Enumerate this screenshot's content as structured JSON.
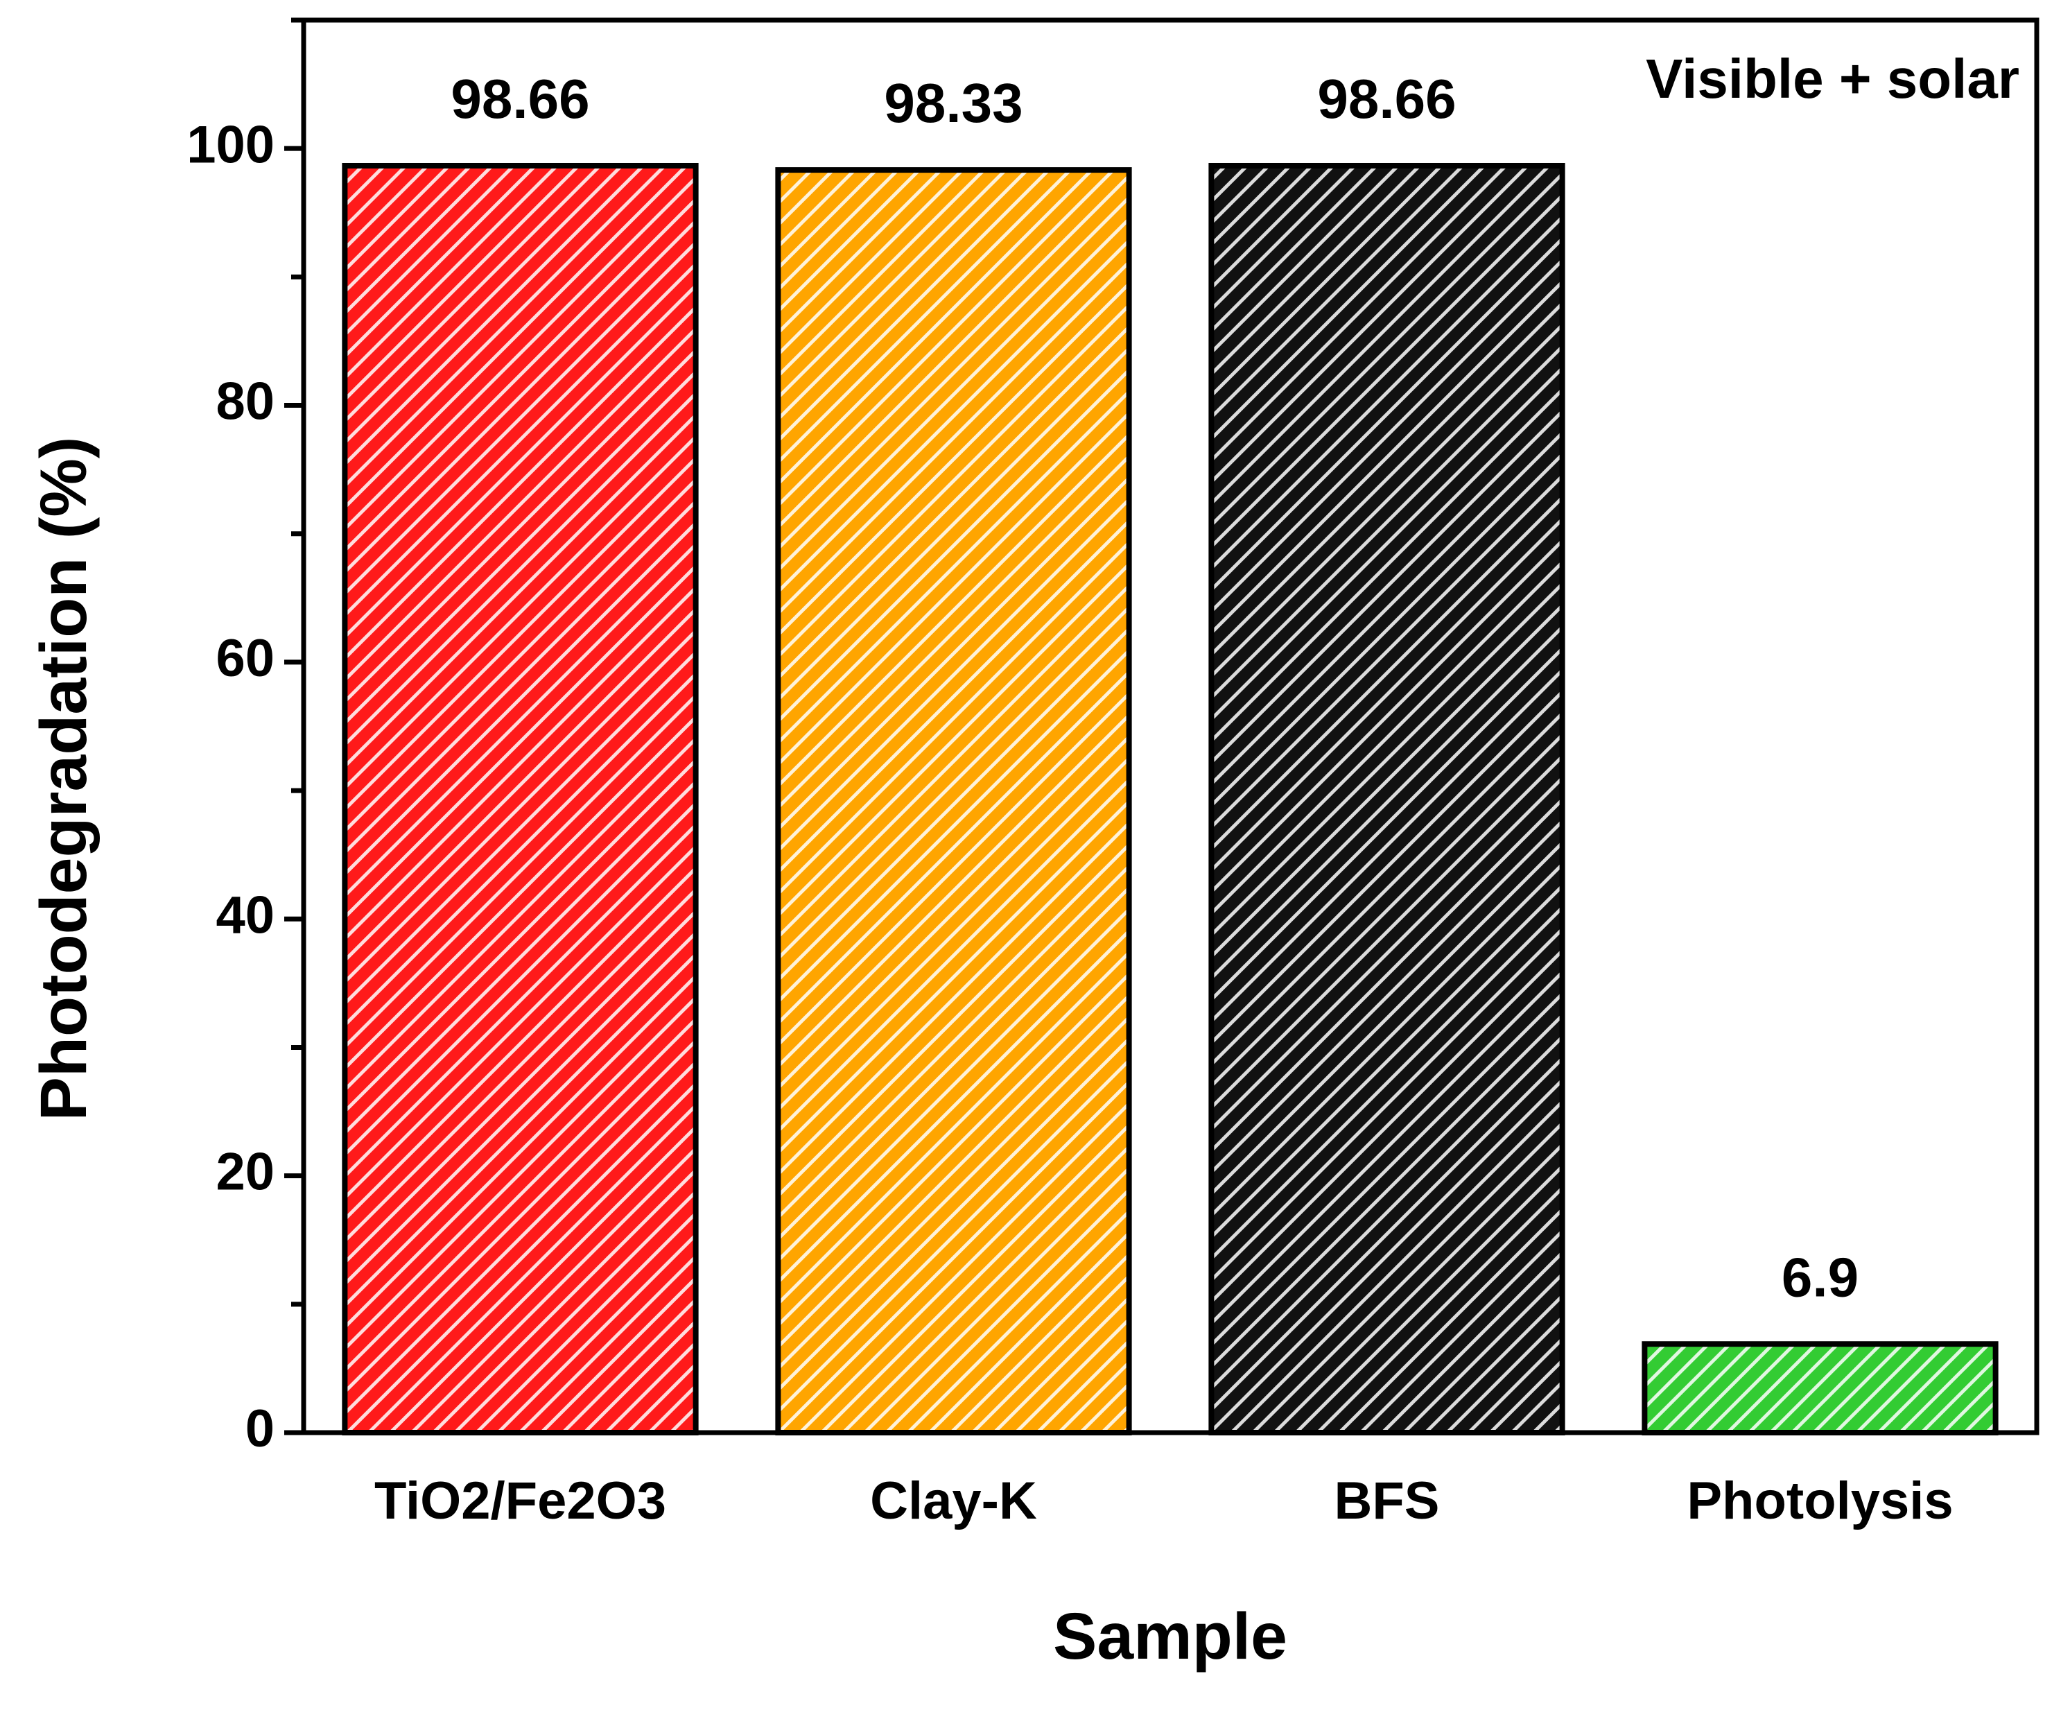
{
  "chart_data": {
    "type": "bar",
    "annotation": "Visible + solar",
    "x_label": "Sample",
    "y_label": "Photodegradation (%)",
    "categories": [
      "TiO2/Fe2O3",
      "Clay-K",
      "BFS",
      "Photolysis"
    ],
    "values": [
      98.66,
      98.33,
      98.66,
      6.9
    ],
    "colors": [
      "#ff1a1a",
      "#ffa500",
      "#111111",
      "#33cc33"
    ],
    "ylim": [
      0,
      110
    ],
    "yticks": [
      0,
      20,
      40,
      60,
      80,
      100
    ],
    "yminorticks": [
      10,
      30,
      50,
      70,
      90,
      110
    ],
    "hatch": true
  }
}
